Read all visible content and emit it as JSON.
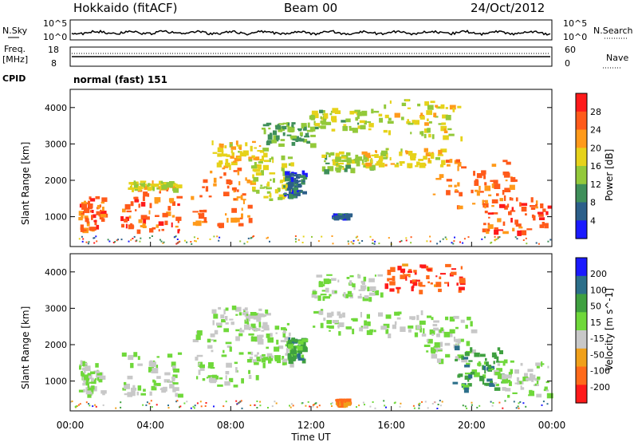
{
  "header": {
    "station": "Hokkaido (fitACF)",
    "beam": "Beam 00",
    "date": "24/Oct/2012"
  },
  "status_panels": {
    "nsky_label": "N.Sky",
    "nsky_ticks": [
      "10^5",
      "10^0"
    ],
    "nsearch_label": "N.Search",
    "nsearch_ticks": [
      "10^5",
      "10^0"
    ],
    "freq_label_1": "Freq.",
    "freq_label_2": "[MHz]",
    "freq_ticks": [
      "18",
      "8"
    ],
    "nave_label": "Nave",
    "nave_ticks": [
      "60",
      "0"
    ],
    "cpid_label": "CPID",
    "cpid_value": "normal (fast) 151"
  },
  "chart_data": [
    {
      "type": "heatmap",
      "name": "power",
      "ylabel": "Slant Range [km]",
      "xlabel": "Time UT",
      "x_ticks": [
        "00:00",
        "04:00",
        "08:00",
        "12:00",
        "16:00",
        "20:00",
        "00:00"
      ],
      "y_ticks": [
        "1000",
        "2000",
        "3000",
        "4000"
      ],
      "xlim_hours": [
        0,
        24
      ],
      "ylim_km": [
        180,
        4500
      ],
      "colorbar_label": "Power [dB]",
      "colorbar_ticks": [
        "28",
        "24",
        "20",
        "16",
        "12",
        "8",
        "4"
      ],
      "colorbar_colors": [
        "#ff1a1a",
        "#ff5a1a",
        "#ff9a1a",
        "#e6d21a",
        "#93c93a",
        "#3f8f5a",
        "#2c5f8a",
        "#1a1aff"
      ],
      "regions": [
        {
          "t0": 0.4,
          "t1": 1.6,
          "r0": 650,
          "r1": 1600,
          "level": 0.85
        },
        {
          "t0": 2.5,
          "t1": 5.4,
          "r0": 650,
          "r1": 1800,
          "level": 0.85
        },
        {
          "t0": 2.8,
          "t1": 5.3,
          "r0": 1800,
          "r1": 2000,
          "level": 0.55
        },
        {
          "t0": 6.0,
          "t1": 9.0,
          "r0": 800,
          "r1": 2400,
          "level": 0.8
        },
        {
          "t0": 7.0,
          "t1": 9.8,
          "r0": 2400,
          "r1": 3100,
          "level": 0.6
        },
        {
          "t0": 9.0,
          "t1": 11.0,
          "r0": 1500,
          "r1": 2700,
          "level": 0.5
        },
        {
          "t0": 9.5,
          "t1": 12.0,
          "r0": 3000,
          "r1": 3600,
          "level": 0.35
        },
        {
          "t0": 12.5,
          "t1": 15.0,
          "r0": 2300,
          "r1": 2800,
          "level": 0.45
        },
        {
          "t0": 11.8,
          "t1": 15.5,
          "r0": 3400,
          "r1": 4000,
          "level": 0.45
        },
        {
          "t0": 15.5,
          "t1": 19.5,
          "r0": 3200,
          "r1": 4250,
          "level": 0.55
        },
        {
          "t0": 14.5,
          "t1": 18.5,
          "r0": 2400,
          "r1": 2900,
          "level": 0.6
        },
        {
          "t0": 18.0,
          "t1": 22.0,
          "r0": 1300,
          "r1": 2600,
          "level": 0.8
        },
        {
          "t0": 20.5,
          "t1": 23.8,
          "r0": 600,
          "r1": 1600,
          "level": 0.85
        },
        {
          "t0": 10.6,
          "t1": 11.6,
          "r0": 1600,
          "r1": 2300,
          "level": 0.15
        },
        {
          "t0": 13.0,
          "t1": 13.8,
          "r0": 1000,
          "r1": 1100,
          "level": 0.15
        }
      ]
    },
    {
      "type": "heatmap",
      "name": "velocity",
      "ylabel": "Slant Range [km]",
      "xlabel": "Time UT",
      "x_ticks": [
        "00:00",
        "04:00",
        "08:00",
        "12:00",
        "16:00",
        "20:00",
        "00:00"
      ],
      "y_ticks": [
        "1000",
        "2000",
        "3000",
        "4000"
      ],
      "xlim_hours": [
        0,
        24
      ],
      "ylim_km": [
        180,
        4500
      ],
      "colorbar_label": "Velocity [m s^-1]",
      "colorbar_ticks": [
        "200",
        "100",
        "50",
        "15",
        "-15",
        "-50",
        "-100",
        "-200"
      ],
      "colorbar_colors": [
        "#1a1aff",
        "#2c6f8a",
        "#3fa040",
        "#6fd83a",
        "#c8c8c8",
        "#f0a01a",
        "#ff6a1a",
        "#ff1a1a"
      ],
      "regions": [
        {
          "t0": 0.4,
          "t1": 1.6,
          "r0": 650,
          "r1": 1600,
          "level": 0.5
        },
        {
          "t0": 2.5,
          "t1": 5.4,
          "r0": 650,
          "r1": 1800,
          "level": 0.5
        },
        {
          "t0": 6.0,
          "t1": 9.5,
          "r0": 900,
          "r1": 2400,
          "level": 0.5
        },
        {
          "t0": 7.0,
          "t1": 9.8,
          "r0": 2400,
          "r1": 3100,
          "level": 0.5
        },
        {
          "t0": 9.0,
          "t1": 11.0,
          "r0": 1500,
          "r1": 2600,
          "level": 0.5
        },
        {
          "t0": 10.8,
          "t1": 11.6,
          "r0": 1600,
          "r1": 2200,
          "level": 0.7
        },
        {
          "t0": 12.0,
          "t1": 17.5,
          "r0": 2300,
          "r1": 3000,
          "level": 0.5
        },
        {
          "t0": 12.0,
          "t1": 15.5,
          "r0": 3300,
          "r1": 3950,
          "level": 0.5
        },
        {
          "t0": 15.5,
          "t1": 19.5,
          "r0": 3500,
          "r1": 4250,
          "level": 0.1
        },
        {
          "t0": 17.5,
          "t1": 20.0,
          "r0": 1600,
          "r1": 2800,
          "level": 0.5
        },
        {
          "t0": 19.0,
          "t1": 21.5,
          "r0": 800,
          "r1": 2000,
          "level": 0.7
        },
        {
          "t0": 21.0,
          "t1": 23.8,
          "r0": 600,
          "r1": 1600,
          "level": 0.5
        },
        {
          "t0": 13.2,
          "t1": 13.8,
          "r0": 400,
          "r1": 520,
          "level": 0.2
        }
      ]
    }
  ]
}
